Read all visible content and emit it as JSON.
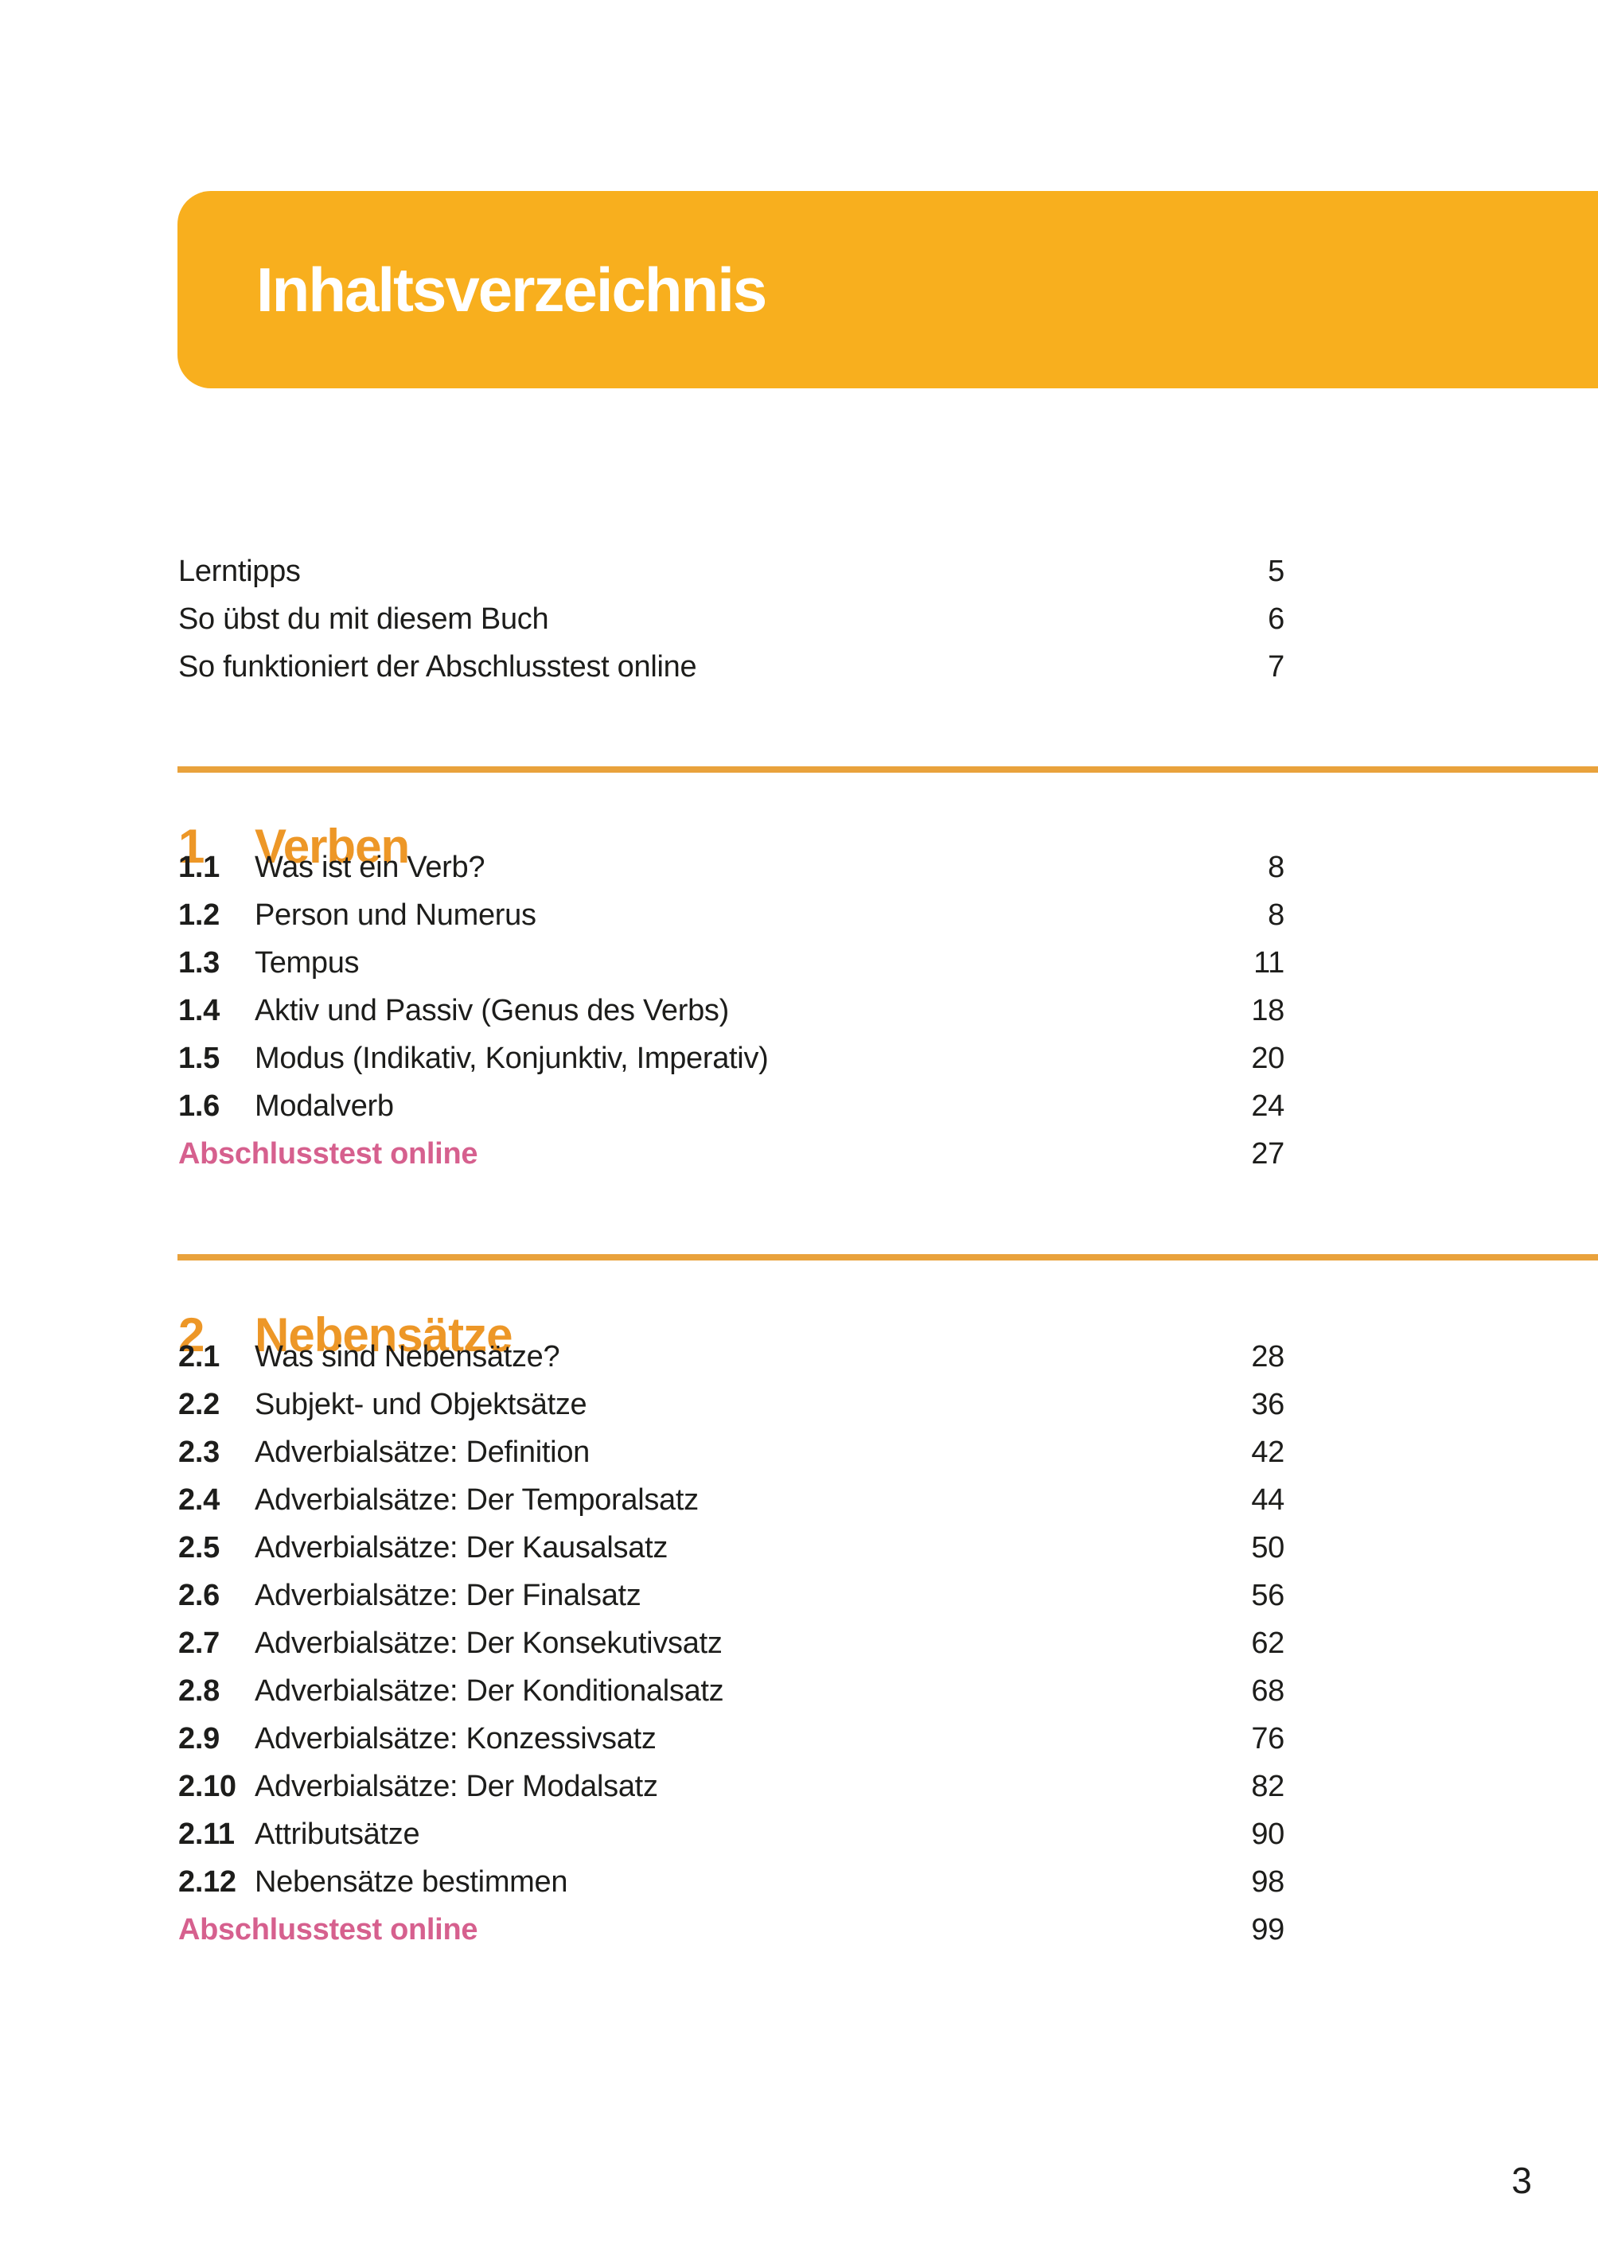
{
  "header": {
    "title": "Inhaltsverzeichnis"
  },
  "front_matter": [
    {
      "title": "Lerntipps",
      "page": "5"
    },
    {
      "title": "So übst du mit diesem Buch",
      "page": "6"
    },
    {
      "title": "So funktioniert der Abschlusstest online",
      "page": "7"
    }
  ],
  "sections": [
    {
      "number": "1",
      "title": "Verben",
      "items": [
        {
          "number": "1.1",
          "title": "Was ist ein Verb?",
          "page": "8"
        },
        {
          "number": "1.2",
          "title": "Person und Numerus",
          "page": "8"
        },
        {
          "number": "1.3",
          "title": "Tempus",
          "page": "11"
        },
        {
          "number": "1.4",
          "title": "Aktiv und Passiv (Genus des Verbs)",
          "page": "18"
        },
        {
          "number": "1.5",
          "title": "Modus (Indikativ, Konjunktiv, Imperativ)",
          "page": "20"
        },
        {
          "number": "1.6",
          "title": "Modalverb",
          "page": "24"
        }
      ],
      "final_test": {
        "label": "Abschlusstest online",
        "page": "27"
      }
    },
    {
      "number": "2",
      "title": "Nebensätze",
      "items": [
        {
          "number": "2.1",
          "title": "Was sind Nebensätze?",
          "page": "28"
        },
        {
          "number": "2.2",
          "title": "Subjekt- und Objektsätze",
          "page": "36"
        },
        {
          "number": "2.3",
          "title": "Adverbialsätze: Definition",
          "page": "42"
        },
        {
          "number": "2.4",
          "title": "Adverbialsätze: Der Temporalsatz",
          "page": "44"
        },
        {
          "number": "2.5",
          "title": "Adverbialsätze: Der Kausalsatz",
          "page": "50"
        },
        {
          "number": "2.6",
          "title": "Adverbialsätze: Der Finalsatz",
          "page": "56"
        },
        {
          "number": "2.7",
          "title": "Adverbialsätze: Der Konsekutivsatz",
          "page": "62"
        },
        {
          "number": "2.8",
          "title": "Adverbialsätze: Der Konditionalsatz",
          "page": "68"
        },
        {
          "number": "2.9",
          "title": "Adverbialsätze: Konzessivsatz",
          "page": "76"
        },
        {
          "number": "2.10",
          "title": "Adverbialsätze: Der Modalsatz",
          "page": "82"
        },
        {
          "number": "2.11",
          "title": "Attributsätze",
          "page": "90"
        },
        {
          "number": "2.12",
          "title": "Nebensätze bestimmen",
          "page": "98"
        }
      ],
      "final_test": {
        "label": "Abschlusstest online",
        "page": "99"
      }
    }
  ],
  "footer": {
    "page_number": "3"
  },
  "colors": {
    "banner_orange": "#F8AF1E",
    "heading_orange": "#ED9727",
    "rule_orange": "#E9A23C",
    "final_test_pink": "#D6608E",
    "text": "#1D1D1B"
  }
}
